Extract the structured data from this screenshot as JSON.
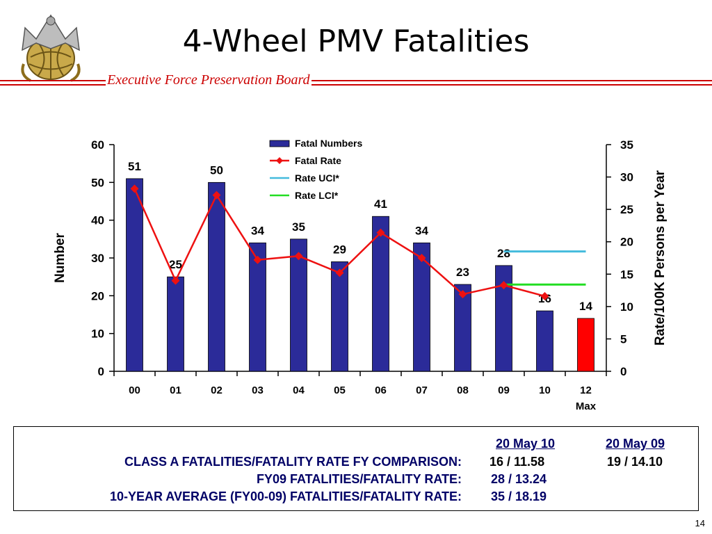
{
  "header": {
    "title": "4-Wheel PMV Fatalities",
    "subtitle": "Executive Force Preservation Board"
  },
  "chart_data": {
    "type": "bar",
    "categories": [
      "00",
      "01",
      "02",
      "03",
      "04",
      "05",
      "06",
      "07",
      "08",
      "09",
      "10",
      "12"
    ],
    "category_sublabel": {
      "12": "Max"
    },
    "series": [
      {
        "name": "Fatal Numbers",
        "kind": "bar",
        "axis": "left",
        "color": "#2b2b99",
        "values": [
          51,
          25,
          50,
          34,
          35,
          29,
          41,
          34,
          23,
          28,
          16,
          14
        ],
        "highlight": {
          "index": 11,
          "color": "#ff0000"
        }
      },
      {
        "name": "Fatal Rate",
        "kind": "line",
        "axis": "right",
        "color": "#ee1111",
        "marker": "diamond",
        "values": [
          28.2,
          14.0,
          27.2,
          17.2,
          17.8,
          15.2,
          21.4,
          17.5,
          11.9,
          13.3,
          11.6,
          null
        ]
      },
      {
        "name": "Rate UCI*",
        "kind": "hline",
        "axis": "right",
        "color": "#44bbdd",
        "value": 18.5,
        "from": "09",
        "to": "12"
      },
      {
        "name": "Rate LCI*",
        "kind": "hline",
        "axis": "right",
        "color": "#22dd22",
        "value": 13.4,
        "from": "09",
        "to": "12"
      }
    ],
    "bar_labels": [
      "51",
      "25",
      "50",
      "34",
      "35",
      "29",
      "41",
      "34",
      "23",
      "28",
      "16",
      "14"
    ],
    "ylabel": "Number",
    "y2label": "Rate/100K Persons per Year",
    "ylim": [
      0,
      60
    ],
    "y2lim": [
      0,
      35
    ],
    "yticks": [
      "0",
      "10",
      "20",
      "30",
      "40",
      "50",
      "60"
    ],
    "y2ticks": [
      "0",
      "5",
      "10",
      "15",
      "20",
      "25",
      "30",
      "35"
    ],
    "legend_position": "top-center",
    "grid": false
  },
  "comparison": {
    "col1_header": "20 May 10",
    "col2_header": "20 May 09",
    "rows": [
      {
        "label": "CLASS A FATALITIES/FATALITY RATE FY COMPARISON:",
        "v1": "16 / 11.58",
        "v2": "19 / 14.10"
      },
      {
        "label": "FY09 FATALITIES/FATALITY RATE:",
        "v1": "28 / 13.24",
        "v2": ""
      },
      {
        "label": "10-YEAR AVERAGE (FY00-09) FATALITIES/FATALITY RATE:",
        "v1": "35 / 18.19",
        "v2": ""
      }
    ]
  },
  "footer": {
    "page_number": "14"
  }
}
